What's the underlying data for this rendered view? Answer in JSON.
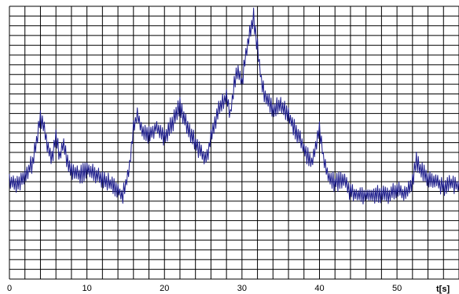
{
  "chart_data": {
    "type": "line",
    "title": "",
    "xlabel": "t[s]",
    "ylabel": "",
    "xlim": [
      0,
      58
    ],
    "ylim": [
      0,
      1
    ],
    "x_ticks": [
      0,
      10,
      20,
      30,
      40,
      50
    ],
    "x_tick_labels": [
      "0",
      "10",
      "20",
      "30",
      "40",
      "50"
    ],
    "x_minor_step": 2,
    "y_grid_lines": 28,
    "grid": true,
    "legend": "none",
    "colors": {
      "line": "#1c1c8c",
      "grid": "#000000",
      "background": "#ffffff"
    },
    "series": [
      {
        "x": [
          0,
          1,
          2,
          3,
          3.5,
          4,
          4.5,
          5,
          5.5,
          6,
          6.5,
          7,
          7.5,
          8,
          9,
          10,
          11,
          12,
          13,
          14,
          14.5,
          15,
          15.5,
          16,
          16.5,
          17,
          18,
          19,
          20,
          21,
          22,
          22.5,
          23,
          24,
          25,
          25.5,
          26,
          27,
          28,
          28.5,
          29,
          29.5,
          30,
          30.5,
          31,
          31.5,
          32,
          32.5,
          33,
          34,
          35,
          36,
          37,
          38,
          39,
          40,
          40.5,
          41,
          42,
          43,
          44,
          45,
          46,
          47,
          48,
          49,
          50,
          51,
          52,
          52.5,
          53,
          54,
          55,
          56,
          57,
          58
        ],
        "y": [
          0.36,
          0.35,
          0.37,
          0.43,
          0.5,
          0.6,
          0.55,
          0.48,
          0.45,
          0.52,
          0.45,
          0.5,
          0.42,
          0.4,
          0.38,
          0.4,
          0.39,
          0.37,
          0.35,
          0.33,
          0.3,
          0.34,
          0.42,
          0.55,
          0.6,
          0.55,
          0.53,
          0.56,
          0.52,
          0.57,
          0.64,
          0.59,
          0.55,
          0.5,
          0.45,
          0.44,
          0.53,
          0.62,
          0.67,
          0.6,
          0.72,
          0.76,
          0.72,
          0.82,
          0.9,
          0.96,
          0.85,
          0.73,
          0.67,
          0.62,
          0.64,
          0.6,
          0.54,
          0.48,
          0.42,
          0.55,
          0.45,
          0.38,
          0.35,
          0.37,
          0.32,
          0.31,
          0.31,
          0.31,
          0.31,
          0.31,
          0.33,
          0.31,
          0.36,
          0.43,
          0.4,
          0.37,
          0.36,
          0.34,
          0.35,
          0.34
        ],
        "ripple_amplitude": 0.025,
        "ripple_period_s": 0.25
      }
    ]
  }
}
